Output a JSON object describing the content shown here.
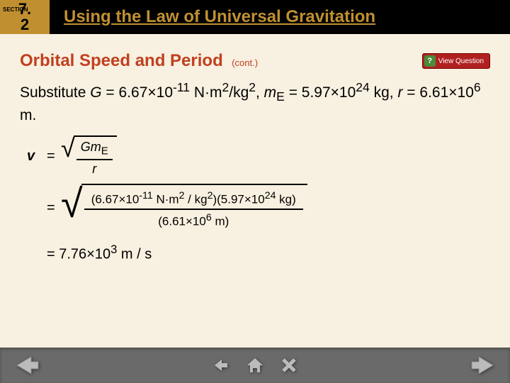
{
  "header": {
    "section_label": "SECTION",
    "section_number": "7.2",
    "section_major": "7.",
    "section_minor": "2",
    "title": "Using the Law of Universal Gravitation",
    "colors": {
      "bar_bg": "#000000",
      "section_bg": "#c09030",
      "title_color": "#c09030"
    }
  },
  "content": {
    "subtitle": "Orbital Speed and Period",
    "subtitle_cont": "(cont.)",
    "subtitle_color": "#c04020",
    "body_html": "Substitute <i>G</i> = 6.67×10<sup>-11</sup> N·m<sup>2</sup>/kg<sup>2</sup>, <i>m</i><sub>E</sub> = 5.97×10<sup>24</sup> kg, <i>r</i> = 6.61×10<sup>6</sup> m.",
    "body_plain": "Substitute G = 6.67×10-11 N·m2/kg2, mE = 5.97×1024 kg, r = 6.61×106 m.",
    "view_question_label": "View Question",
    "view_question_icon": "?",
    "equations": {
      "eq1": {
        "lhs": "v",
        "num": "GmE",
        "num_html": "<i>Gm</i><sub>E</sub>",
        "den": "r",
        "den_html": "<i>r</i>"
      },
      "eq2": {
        "num_html": "(6.67×10<sup>-11</sup> N·m<sup>2</sup> / kg<sup>2</sup>)(5.97×10<sup>24</sup> kg)",
        "den_html": "(6.61×10<sup>6</sup> m)",
        "num_plain": "(6.67×10^-11 N·m^2/kg^2)(5.97×10^24 kg)",
        "den_plain": "(6.61×10^6 m)"
      },
      "result_html": "= 7.76×10<sup>3</sup> m / s",
      "result_plain": "= 7.76×10^3 m/s"
    }
  },
  "nav": {
    "prev": "prev",
    "next": "next",
    "center_buttons": [
      "back",
      "home",
      "close"
    ],
    "bar_bg": "#6a6a6a"
  },
  "page_bg": "#f8f0e0"
}
